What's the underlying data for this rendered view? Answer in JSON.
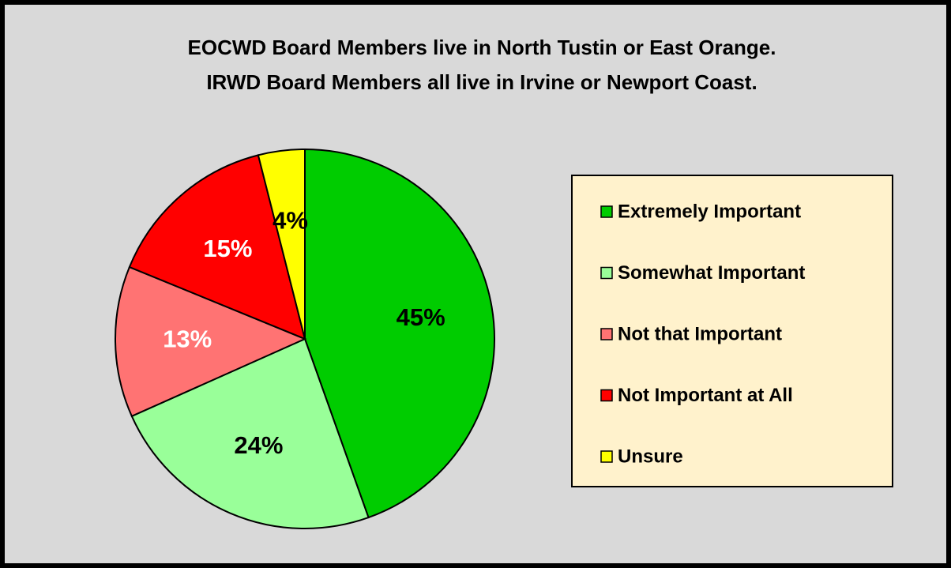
{
  "chart_data": {
    "type": "pie",
    "title": [
      "EOCWD Board Members live in North Tustin or East Orange.",
      "IRWD Board Members all live in Irvine or Newport Coast."
    ],
    "categories": [
      "Extremely Important",
      "Somewhat Important",
      "Not that Important",
      "Not Important at All",
      "Unsure"
    ],
    "values": [
      45,
      24,
      13,
      15,
      4
    ],
    "value_labels": [
      "45%",
      "24%",
      "13%",
      "15%",
      "4%"
    ],
    "colors": [
      "#00cc00",
      "#99ff99",
      "#ff7373",
      "#ff0000",
      "#ffff00"
    ],
    "label_colors": [
      "#000000",
      "#000000",
      "#ffffff",
      "#ffffff",
      "#000000"
    ],
    "legend": "right"
  }
}
